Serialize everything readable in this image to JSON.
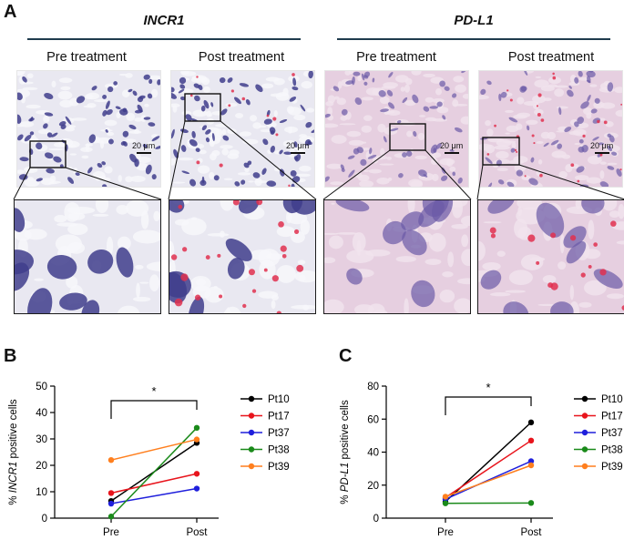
{
  "panelA": {
    "letter": "A",
    "groups": [
      {
        "title": "INCR1",
        "columns": [
          "Pre treatment",
          "Post treatment"
        ]
      },
      {
        "title": "PD-L1",
        "columns": [
          "Pre treatment",
          "Post treatment"
        ]
      }
    ],
    "scale_label": "20 μm",
    "colors": {
      "hematoxylin": "#3f3d8c",
      "ish_signal": "#e0304f",
      "background_incr1": "#e9e8f1",
      "background_pdl1": "#e6cfe0"
    }
  },
  "chart_data": [
    {
      "type": "line",
      "panel": "B",
      "categories": [
        "Pre",
        "Post"
      ],
      "ylabel_prefix": "% ",
      "ylabel_italic": "INCR1",
      "ylabel_suffix": " positive cells",
      "ylim": [
        0,
        50
      ],
      "yticks": [
        0,
        10,
        20,
        30,
        40,
        50
      ],
      "significance": "*",
      "legend": "right",
      "series": [
        {
          "name": "Pt10",
          "color": "#000000",
          "values": [
            6.5,
            28.5
          ]
        },
        {
          "name": "Pt17",
          "color": "#e8141c",
          "values": [
            9.5,
            16.8
          ]
        },
        {
          "name": "Pt37",
          "color": "#1f1fdc",
          "values": [
            5.5,
            11.2
          ]
        },
        {
          "name": "Pt38",
          "color": "#1a8a1a",
          "values": [
            0.6,
            34.2
          ]
        },
        {
          "name": "Pt39",
          "color": "#ff7f1e",
          "values": [
            22,
            29.8
          ]
        }
      ]
    },
    {
      "type": "line",
      "panel": "C",
      "categories": [
        "Pre",
        "Post"
      ],
      "ylabel_prefix": "% ",
      "ylabel_italic": "PD-L1",
      "ylabel_suffix": " positive cells",
      "ylim": [
        0,
        80
      ],
      "yticks": [
        0,
        20,
        40,
        60,
        80
      ],
      "significance": "*",
      "legend": "right",
      "series": [
        {
          "name": "Pt10",
          "color": "#000000",
          "values": [
            10,
            58
          ]
        },
        {
          "name": "Pt17",
          "color": "#e8141c",
          "values": [
            12.5,
            47
          ]
        },
        {
          "name": "Pt37",
          "color": "#1f1fdc",
          "values": [
            11.5,
            34.5
          ]
        },
        {
          "name": "Pt38",
          "color": "#1a8a1a",
          "values": [
            9,
            9.2
          ]
        },
        {
          "name": "Pt39",
          "color": "#ff7f1e",
          "values": [
            13,
            32
          ]
        }
      ]
    }
  ]
}
